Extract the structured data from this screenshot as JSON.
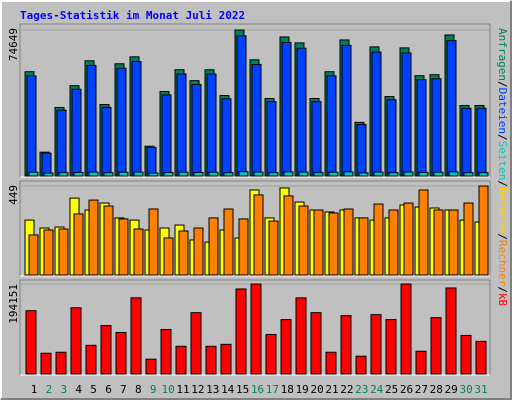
{
  "title": "Tages-Statistik im Monat Juli 2022",
  "legend_separator": "/",
  "chart_data": [
    {
      "type": "bar",
      "ylim": [
        0,
        74649
      ],
      "series": [
        {
          "name": "Anfragen",
          "color": "#00805c",
          "values": [
            53320,
            12190,
            35040,
            46210,
            58900,
            36560,
            57380,
            60940,
            15230,
            43160,
            54330,
            48750,
            54330,
            41130,
            74649,
            59410,
            39610,
            71090,
            68050,
            39610,
            53320,
            69570,
            27420,
            66010,
            40620,
            65510,
            51290,
            51800,
            72110,
            36050,
            36050
          ]
        },
        {
          "name": "Dateien",
          "color": "#0040ff",
          "values": [
            51190,
            11700,
            33640,
            44360,
            56540,
            35100,
            55080,
            58500,
            14620,
            41430,
            52160,
            46800,
            52160,
            39480,
            71660,
            57030,
            38030,
            68250,
            65330,
            38030,
            51190,
            66790,
            26320,
            63370,
            38990,
            62890,
            49240,
            49730,
            69230,
            34610,
            34610
          ]
        },
        {
          "name": "Seiten",
          "color": "#00c8c8",
          "values": [
            1900,
            1500,
            1700,
            1800,
            2000,
            1700,
            1900,
            2000,
            1500,
            1800,
            1900,
            1800,
            1900,
            1700,
            2200,
            2000,
            1700,
            2100,
            2000,
            1700,
            1900,
            2100,
            1600,
            2000,
            1700,
            2000,
            1800,
            1900,
            2100,
            1700,
            1700
          ]
        }
      ]
    },
    {
      "type": "bar",
      "ylim": [
        0,
        449
      ],
      "series": [
        {
          "name": "Besuche",
          "color": "#ffff00",
          "values": [
            277,
            237,
            242,
            388,
            328,
            363,
            288,
            277,
            227,
            237,
            252,
            177,
            166,
            227,
            187,
            429,
            288,
            439,
            368,
            328,
            318,
            328,
            288,
            277,
            288,
            353,
            343,
            338,
            328,
            277,
            267
          ]
        },
        {
          "name": "Rechner",
          "color": "#ff8000",
          "values": [
            202,
            227,
            232,
            308,
            378,
            348,
            283,
            232,
            333,
            187,
            222,
            237,
            288,
            333,
            283,
            404,
            272,
            399,
            348,
            328,
            313,
            333,
            288,
            358,
            328,
            363,
            429,
            328,
            328,
            363,
            449
          ]
        }
      ]
    },
    {
      "type": "bar",
      "ylim": [
        0,
        194151
      ],
      "categories": [
        "1",
        "2",
        "3",
        "4",
        "5",
        "6",
        "7",
        "8",
        "9",
        "10",
        "11",
        "12",
        "13",
        "14",
        "15",
        "16",
        "17",
        "18",
        "19",
        "20",
        "21",
        "22",
        "23",
        "24",
        "25",
        "26",
        "27",
        "28",
        "29",
        "30",
        "31"
      ],
      "label_colors": [
        "#000000",
        "#00805c",
        "#00805c",
        "#000000",
        "#000000",
        "#000000",
        "#000000",
        "#000000",
        "#00805c",
        "#00805c",
        "#000000",
        "#000000",
        "#000000",
        "#000000",
        "#000000",
        "#00805c",
        "#00805c",
        "#000000",
        "#000000",
        "#000000",
        "#000000",
        "#000000",
        "#00805c",
        "#00805c",
        "#000000",
        "#000000",
        "#000000",
        "#000000",
        "#000000",
        "#00805c",
        "#00805c"
      ],
      "series": [
        {
          "name": "kB",
          "color": "#ff0000",
          "values": [
            136544,
            44804,
            46937,
            142945,
            61872,
            104542,
            89607,
            164280,
            32003,
            96008,
            59738,
            132277,
            59738,
            64005,
            183481,
            194151,
            85340,
            117343,
            164280,
            132277,
            46937,
            125877,
            38403,
            128010,
            117343,
            194151,
            49071,
            121610,
            185615,
            83207,
            70406
          ]
        }
      ]
    }
  ]
}
